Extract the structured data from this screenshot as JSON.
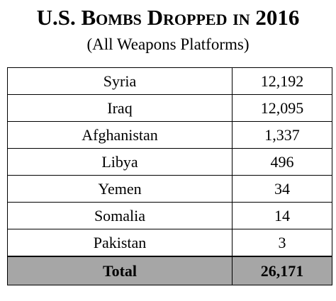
{
  "header": {
    "title": "U.S. Bombs Dropped in 2016",
    "subtitle": "(All Weapons Platforms)"
  },
  "table": {
    "rows": [
      {
        "country": "Syria",
        "bombs": "12,192"
      },
      {
        "country": "Iraq",
        "bombs": "12,095"
      },
      {
        "country": "Afghanistan",
        "bombs": "1,337"
      },
      {
        "country": "Libya",
        "bombs": "496"
      },
      {
        "country": "Yemen",
        "bombs": "34"
      },
      {
        "country": "Somalia",
        "bombs": "14"
      },
      {
        "country": "Pakistan",
        "bombs": "3"
      }
    ],
    "total": {
      "label": "Total",
      "bombs": "26,171"
    }
  },
  "colors": {
    "total_row_background": "#a6a6a6"
  }
}
